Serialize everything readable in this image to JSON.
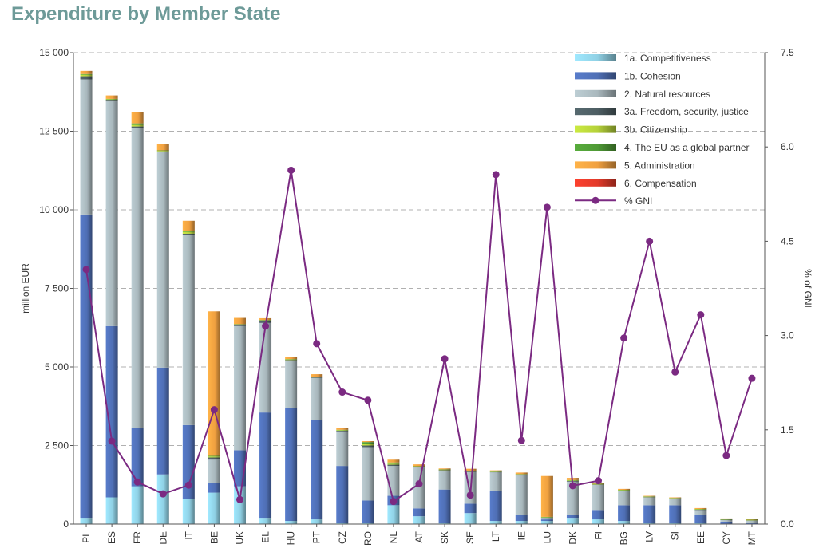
{
  "chart_data": {
    "type": "bar",
    "stacked": true,
    "title": "Expenditure by Member State",
    "ylabel": "million EUR",
    "y2label": "% of GNI",
    "ylim": [
      0,
      15000
    ],
    "y2lim": [
      0,
      7.5
    ],
    "yticks": [
      "0",
      "2 500",
      "5 000",
      "7 500",
      "10 000",
      "12 500",
      "15 000"
    ],
    "y2ticks": [
      "0.0",
      "1.5",
      "3.0",
      "4.5",
      "6.0",
      "7.5"
    ],
    "grid": "horizontal dashed",
    "legend_position": "top-right",
    "categories": [
      "PL",
      "ES",
      "FR",
      "DE",
      "IT",
      "BE",
      "UK",
      "EL",
      "HU",
      "PT",
      "CZ",
      "RO",
      "NL",
      "AT",
      "SK",
      "SE",
      "LT",
      "IE",
      "LU",
      "DK",
      "FI",
      "BG",
      "LV",
      "SI",
      "EE",
      "CY",
      "MT"
    ],
    "series": [
      {
        "name": "1a. Competitiveness",
        "color": "#8fd0e4",
        "values": [
          200,
          850,
          1200,
          1580,
          800,
          1000,
          1200,
          200,
          100,
          150,
          50,
          50,
          600,
          250,
          50,
          350,
          100,
          100,
          100,
          200,
          150,
          100,
          50,
          50,
          50,
          10,
          10
        ]
      },
      {
        "name": "1b. Cohesion",
        "color": "#4f6fb5",
        "values": [
          9650,
          5450,
          1850,
          3400,
          2350,
          300,
          1150,
          3350,
          3600,
          3150,
          1800,
          700,
          300,
          250,
          1050,
          300,
          950,
          200,
          50,
          100,
          300,
          500,
          550,
          550,
          250,
          70,
          40
        ]
      },
      {
        "name": "2. Natural resources",
        "color": "#a9b8bd",
        "values": [
          4300,
          7150,
          9550,
          6850,
          6050,
          750,
          3950,
          2850,
          1500,
          1350,
          1100,
          1700,
          950,
          1300,
          600,
          1000,
          600,
          1250,
          50,
          1050,
          800,
          450,
          250,
          200,
          150,
          50,
          60
        ]
      },
      {
        "name": "3a. Freedom, security, justice",
        "color": "#4d5e63",
        "values": [
          100,
          50,
          50,
          30,
          40,
          70,
          40,
          50,
          20,
          20,
          20,
          50,
          40,
          20,
          20,
          20,
          10,
          10,
          10,
          20,
          10,
          20,
          10,
          10,
          10,
          10,
          10
        ]
      },
      {
        "name": "3b. Citizenship",
        "color": "#b5d13a",
        "values": [
          50,
          20,
          50,
          20,
          60,
          30,
          10,
          20,
          20,
          10,
          20,
          50,
          30,
          10,
          10,
          20,
          20,
          20,
          10,
          20,
          10,
          10,
          10,
          10,
          10,
          10,
          10
        ]
      },
      {
        "name": "4. The EU as a global partner",
        "color": "#4f9a36",
        "values": [
          20,
          10,
          50,
          10,
          30,
          20,
          10,
          20,
          10,
          10,
          10,
          60,
          40,
          10,
          10,
          10,
          10,
          10,
          10,
          10,
          10,
          10,
          10,
          10,
          10,
          10,
          10
        ]
      },
      {
        "name": "5. Administration",
        "color": "#f0a040",
        "values": [
          100,
          110,
          350,
          200,
          320,
          4600,
          200,
          60,
          80,
          80,
          50,
          30,
          90,
          60,
          30,
          60,
          20,
          50,
          1300,
          70,
          30,
          30,
          20,
          20,
          30,
          20,
          20
        ]
      },
      {
        "name": "6. Compensation",
        "color": "#e23a2a",
        "values": [
          0,
          0,
          0,
          0,
          0,
          0,
          0,
          0,
          0,
          0,
          0,
          0,
          0,
          0,
          0,
          0,
          0,
          0,
          0,
          0,
          0,
          0,
          0,
          0,
          0,
          0,
          0
        ]
      }
    ],
    "line": {
      "name": "% GNI",
      "color": "#7b2a82",
      "values": [
        4.05,
        1.32,
        0.67,
        0.48,
        0.62,
        1.82,
        0.39,
        3.15,
        5.63,
        2.87,
        2.1,
        1.97,
        0.36,
        0.64,
        2.63,
        0.46,
        5.56,
        1.33,
        5.04,
        0.61,
        0.69,
        2.96,
        4.5,
        2.42,
        3.33,
        1.09,
        2.32
      ]
    }
  }
}
